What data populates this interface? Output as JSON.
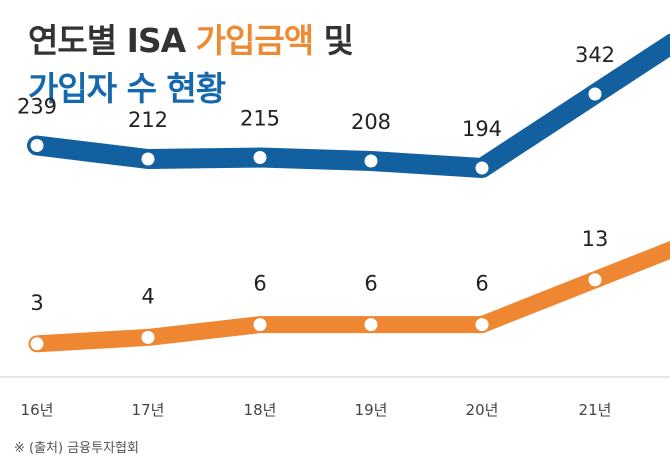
{
  "title": {
    "part1": "연도별 ISA ",
    "part2": "가입금액",
    "part3": " 및",
    "line2": "가입자 수 현황"
  },
  "source": "※ (출처) 금융투자협회",
  "colors": {
    "accounts_line": "#12609f",
    "amount_line": "#ef8632",
    "title_orange": "#ef8a34",
    "title_blue": "#1468ad",
    "text": "#333333"
  },
  "chart_data": {
    "type": "line",
    "categories": [
      "16년",
      "17년",
      "18년",
      "19년",
      "20년",
      "21년"
    ],
    "series": [
      {
        "values": [
          239,
          212,
          215,
          208,
          194,
          342
        ]
      },
      {
        "values": [
          3,
          4,
          6,
          6,
          6,
          13
        ]
      }
    ],
    "grid": false,
    "legend": "none"
  }
}
